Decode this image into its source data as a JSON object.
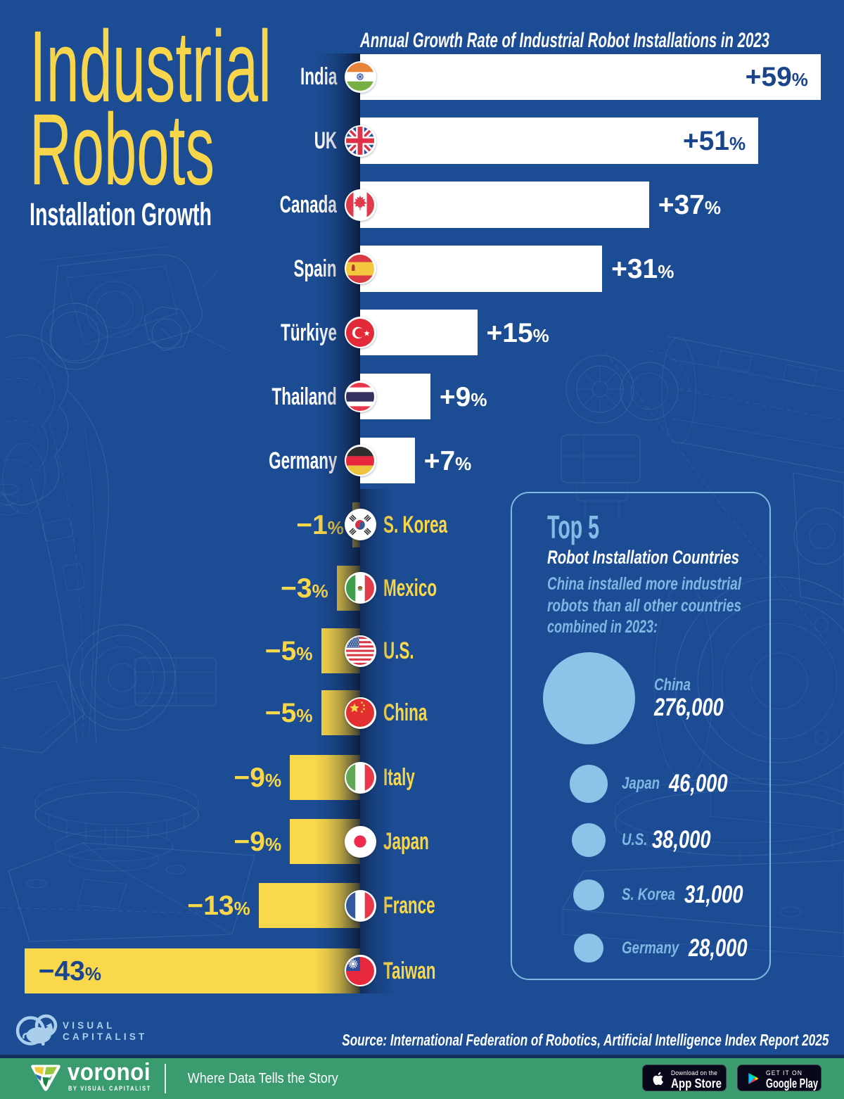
{
  "title": {
    "line1": "Industrial",
    "line2": "Robots",
    "subtitle": "Installation Growth"
  },
  "chart_data": {
    "type": "bar",
    "orientation": "horizontal-diverging",
    "title": "Annual Growth Rate of Industrial Robot Installations in 2023",
    "unit": "%",
    "categories": [
      "India",
      "UK",
      "Canada",
      "Spain",
      "Türkiye",
      "Thailand",
      "Germany",
      "S. Korea",
      "Mexico",
      "U.S.",
      "China",
      "Italy",
      "Japan",
      "France",
      "Taiwan"
    ],
    "values": [
      59,
      51,
      37,
      31,
      15,
      9,
      7,
      -1,
      -3,
      -5,
      -5,
      -9,
      -9,
      -13,
      -43
    ],
    "labels": [
      "+59%",
      "+51%",
      "+37%",
      "+31%",
      "+15%",
      "+9%",
      "+7%",
      "-1%",
      "-3%",
      "-5%",
      "-5%",
      "-9%",
      "-9%",
      "-13%",
      "-43%"
    ],
    "flag_icons": [
      "india-flag-icon",
      "uk-flag-icon",
      "canada-flag-icon",
      "spain-flag-icon",
      "turkiye-flag-icon",
      "thailand-flag-icon",
      "germany-flag-icon",
      "skorea-flag-icon",
      "mexico-flag-icon",
      "us-flag-icon",
      "china-flag-icon",
      "italy-flag-icon",
      "japan-flag-icon",
      "france-flag-icon",
      "taiwan-flag-icon"
    ],
    "positive_bar_color": "#ffffff",
    "negative_bar_color": "#f9d84b",
    "xlim": [
      -43,
      59
    ]
  },
  "panel": {
    "title": "Top 5",
    "subtitle": "Robot Installation Countries",
    "description_lines": [
      "China installed more industrial",
      "robots than all other countries",
      "combined in 2023:"
    ],
    "bubble_color": "#8cc3e9",
    "bubbles": [
      {
        "country": "China",
        "value_label": "276,000",
        "value": 276000
      },
      {
        "country": "Japan",
        "value_label": "46,000",
        "value": 46000
      },
      {
        "country": "U.S.",
        "value_label": "38,000",
        "value": 38000
      },
      {
        "country": "S. Korea",
        "value_label": "31,000",
        "value": 31000
      },
      {
        "country": "Germany",
        "value_label": "28,000",
        "value": 28000
      }
    ]
  },
  "footer": {
    "logo_icon": "visual-capitalist-logo",
    "logo_line1": "VISUAL",
    "logo_line2": "CAPITALIST",
    "source": "Source: International Federation of Robotics, Artificial Intelligence Index Report 2025"
  },
  "bottom_bar": {
    "brand_icon": "voronoi-logo",
    "brand": "voronoi",
    "brand_sub": "BY VISUAL CAPITALIST",
    "tagline": "Where Data Tells the Story",
    "badges": [
      {
        "icon": "apple-logo-icon",
        "line1": "Download on the",
        "line2": "App Store"
      },
      {
        "icon": "google-play-icon",
        "line1": "GET IT ON",
        "line2": "Google Play"
      }
    ]
  },
  "colors": {
    "background": "#1c4c94",
    "accent_yellow": "#f8d74b",
    "deep_blue_text": "#1a458c",
    "light_blue": "#7db7e2",
    "bubble_blue": "#8cc3e9",
    "green_bar": "#3a9c6e"
  }
}
